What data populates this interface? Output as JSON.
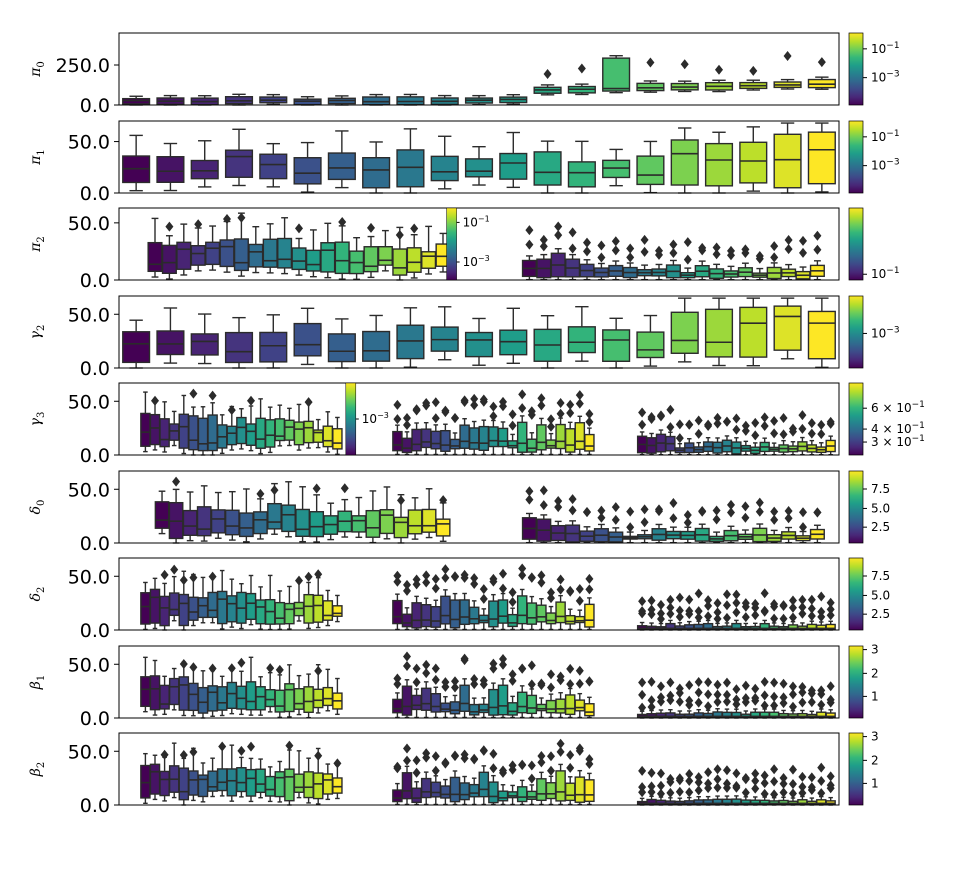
{
  "chart_data": {
    "type": "boxplot",
    "figure": "Grid of box-plot panels, one per parameter, boxes colored by a viridis colormap with colorbar on the right",
    "colormap": [
      "#440154",
      "#482878",
      "#3e4989",
      "#31688e",
      "#26828e",
      "#1f9e89",
      "#35b779",
      "#6ece58",
      "#b5de2b",
      "#fde725"
    ],
    "panels": [
      {
        "ylabel": "π",
        "ylabel_sub": "0",
        "ylim": [
          0,
          450
        ],
        "yticks": [
          "0.0",
          "250.0"
        ],
        "ytick_values": [
          0,
          250
        ],
        "groups": [
          {
            "n": 21,
            "start": 0.0,
            "end": 1.0,
            "style": "wide"
          }
        ],
        "colorbar": {
          "ticks": [
            "10",
            "10"
          ],
          "tick_exps": [
            "−1",
            "−3"
          ],
          "tick_pos": [
            0.22,
            0.62
          ]
        }
      },
      {
        "ylabel": "π",
        "ylabel_sub": "1",
        "ylim": [
          0,
          70
        ],
        "yticks": [
          "0.0",
          "50.0"
        ],
        "ytick_values": [
          0,
          50
        ],
        "groups": [
          {
            "n": 21,
            "start": 0.0,
            "end": 1.0,
            "style": "wide"
          }
        ],
        "colorbar": {
          "ticks": [
            "10",
            "10"
          ],
          "tick_exps": [
            "−1",
            "−3"
          ],
          "tick_pos": [
            0.22,
            0.62
          ]
        }
      },
      {
        "ylabel": "π",
        "ylabel_sub": "2",
        "ylim": [
          0,
          63
        ],
        "yticks": [
          "0.0",
          "50.0"
        ],
        "ytick_values": [
          0,
          50
        ],
        "groups": [
          {
            "n": 21,
            "start": 0.04,
            "end": 0.46,
            "style": "dense"
          },
          {
            "n": 21,
            "start": 0.56,
            "end": 0.98,
            "style": "low"
          }
        ],
        "inset_colorbar": {
          "ticks": [
            "10",
            "10"
          ],
          "tick_exps": [
            "−1",
            "−3"
          ]
        },
        "colorbar": {
          "ticks": [
            "10"
          ],
          "tick_exps": [
            "−1"
          ],
          "tick_pos": [
            0.92
          ]
        }
      },
      {
        "ylabel": "γ",
        "ylabel_sub": "2",
        "ylim": [
          0,
          67
        ],
        "yticks": [
          "0.0",
          "50.0"
        ],
        "ytick_values": [
          0,
          50
        ],
        "groups": [
          {
            "n": 21,
            "start": 0.0,
            "end": 1.0,
            "style": "wide"
          }
        ],
        "colorbar": {
          "ticks": [
            "10"
          ],
          "tick_exps": [
            "−3"
          ],
          "tick_pos": [
            0.52
          ]
        }
      },
      {
        "ylabel": "γ",
        "ylabel_sub": "3",
        "ylim": [
          0,
          67
        ],
        "yticks": [
          "0.0",
          "50.0"
        ],
        "ytick_values": [
          0,
          50
        ],
        "groups": [
          {
            "n": 21,
            "start": 0.03,
            "end": 0.31,
            "style": "dense"
          },
          {
            "n": 21,
            "start": 0.38,
            "end": 0.66,
            "style": "mid"
          },
          {
            "n": 21,
            "start": 0.72,
            "end": 0.995,
            "style": "low"
          }
        ],
        "inset_colorbar": {
          "ticks": [
            "10"
          ],
          "tick_exps": [
            "−3"
          ]
        },
        "colorbar": {
          "ticks": [
            "6 × 10",
            "4 × 10",
            "3 × 10"
          ],
          "tick_exps": [
            "−1",
            "−1",
            "−1"
          ],
          "tick_pos": [
            0.35,
            0.64,
            0.82
          ]
        }
      },
      {
        "ylabel": "δ",
        "ylabel_sub": "0",
        "ylim": [
          0,
          67
        ],
        "yticks": [
          "0.0",
          "50.0"
        ],
        "ytick_values": [
          0,
          50
        ],
        "groups": [
          {
            "n": 21,
            "start": 0.05,
            "end": 0.46,
            "style": "dense"
          },
          {
            "n": 21,
            "start": 0.56,
            "end": 0.98,
            "style": "low"
          }
        ],
        "colorbar": {
          "ticks": [
            "7.5",
            "5.0",
            "2.5"
          ],
          "tick_exps": [
            "",
            "",
            ""
          ],
          "tick_pos": [
            0.25,
            0.52,
            0.78
          ]
        }
      },
      {
        "ylabel": "δ",
        "ylabel_sub": "2",
        "ylim": [
          0,
          67
        ],
        "yticks": [
          "0.0",
          "50.0"
        ],
        "ytick_values": [
          0,
          50
        ],
        "groups": [
          {
            "n": 21,
            "start": 0.03,
            "end": 0.31,
            "style": "dense"
          },
          {
            "n": 21,
            "start": 0.38,
            "end": 0.66,
            "style": "mid"
          },
          {
            "n": 21,
            "start": 0.72,
            "end": 0.995,
            "style": "flat"
          }
        ],
        "colorbar": {
          "ticks": [
            "7.5",
            "5.0",
            "2.5"
          ],
          "tick_exps": [
            "",
            "",
            ""
          ],
          "tick_pos": [
            0.25,
            0.52,
            0.78
          ]
        }
      },
      {
        "ylabel": "β",
        "ylabel_sub": "1",
        "ylim": [
          0,
          67
        ],
        "yticks": [
          "0.0",
          "50.0"
        ],
        "ytick_values": [
          0,
          50
        ],
        "groups": [
          {
            "n": 21,
            "start": 0.03,
            "end": 0.31,
            "style": "dense"
          },
          {
            "n": 21,
            "start": 0.38,
            "end": 0.66,
            "style": "mid"
          },
          {
            "n": 21,
            "start": 0.72,
            "end": 0.995,
            "style": "flat"
          }
        ],
        "colorbar": {
          "ticks": [
            "3",
            "2",
            "1"
          ],
          "tick_exps": [
            "",
            "",
            ""
          ],
          "tick_pos": [
            0.05,
            0.38,
            0.7
          ]
        }
      },
      {
        "ylabel": "β",
        "ylabel_sub": "2",
        "ylim": [
          0,
          67
        ],
        "yticks": [
          "0.0",
          "50.0"
        ],
        "ytick_values": [
          0,
          50
        ],
        "groups": [
          {
            "n": 21,
            "start": 0.03,
            "end": 0.31,
            "style": "dense"
          },
          {
            "n": 21,
            "start": 0.38,
            "end": 0.66,
            "style": "mid"
          },
          {
            "n": 21,
            "start": 0.72,
            "end": 0.995,
            "style": "flat"
          }
        ],
        "colorbar": {
          "ticks": [
            "3",
            "2",
            "1"
          ],
          "tick_exps": [
            "",
            "",
            ""
          ],
          "tick_pos": [
            0.05,
            0.38,
            0.7
          ]
        }
      }
    ]
  }
}
